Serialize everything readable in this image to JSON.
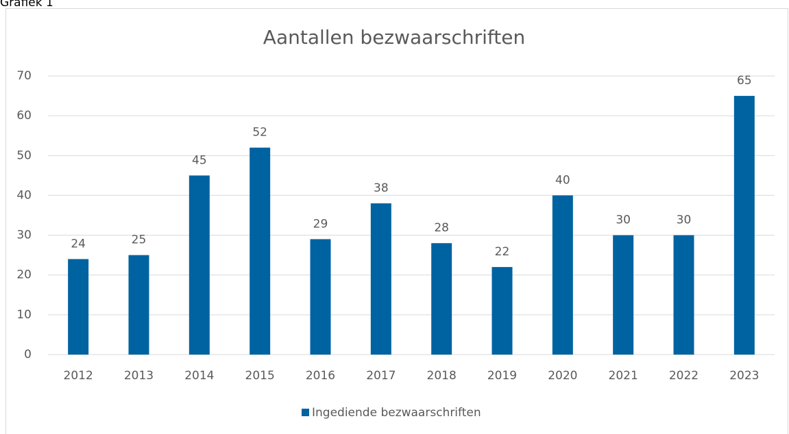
{
  "heading": "Grafiek 1",
  "chart_data": {
    "type": "bar",
    "title": "Aantallen bezwaarschriften",
    "categories": [
      "2012",
      "2013",
      "2014",
      "2015",
      "2016",
      "2017",
      "2018",
      "2019",
      "2020",
      "2021",
      "2022",
      "2023"
    ],
    "series": [
      {
        "name": "Ingediende bezwaarschriften",
        "color": "#0063a1",
        "values": [
          24,
          25,
          45,
          52,
          29,
          38,
          28,
          22,
          40,
          30,
          30,
          65
        ]
      }
    ],
    "ylim": [
      0,
      70
    ],
    "yticks": [
      0,
      10,
      20,
      30,
      40,
      50,
      60,
      70
    ],
    "grid": true,
    "legend": "bottom"
  }
}
